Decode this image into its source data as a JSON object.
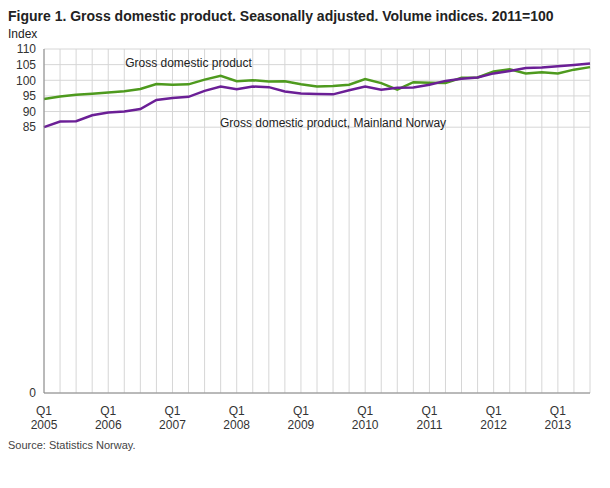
{
  "chart_data": {
    "type": "line",
    "title": "Figure 1. Gross domestic product. Seasonally adjusted. Volume indices. 2011=100",
    "y_label": "Index",
    "source": "Source: Statistics Norway.",
    "categories": [
      "Q1 2005",
      null,
      null,
      null,
      "Q1 2006",
      null,
      null,
      null,
      "Q1 2007",
      null,
      null,
      null,
      "Q1 2008",
      null,
      null,
      null,
      "Q1 2009",
      null,
      null,
      null,
      "Q1 2010",
      null,
      null,
      null,
      "Q1 2011",
      null,
      null,
      null,
      "Q1 2012",
      null,
      null,
      null,
      "Q1 2013",
      null,
      null
    ],
    "series": [
      {
        "name": "Gross domestic product",
        "color": "#4e9a1e",
        "values": [
          94.0,
          94.8,
          95.4,
          95.7,
          96.1,
          96.5,
          97.2,
          98.8,
          98.6,
          98.7,
          100.2,
          101.4,
          99.7,
          100.0,
          99.6,
          99.7,
          98.7,
          98.0,
          98.2,
          98.6,
          100.4,
          99.1,
          97.0,
          99.4,
          99.2,
          99.1,
          100.8,
          100.9,
          102.8,
          103.5,
          102.2,
          102.6,
          102.2,
          103.4,
          104.2
        ]
      },
      {
        "name": "Gross domestic product, Mainland Norway",
        "color": "#6b1f96",
        "values": [
          85.0,
          86.8,
          86.9,
          88.8,
          89.7,
          90.0,
          90.8,
          93.7,
          94.3,
          94.7,
          96.6,
          98.0,
          97.1,
          98.0,
          97.8,
          96.4,
          95.8,
          95.6,
          95.5,
          96.8,
          98.0,
          97.0,
          97.6,
          97.7,
          98.6,
          99.8,
          100.5,
          100.9,
          102.2,
          103.0,
          103.9,
          104.1,
          104.5,
          104.9,
          105.4
        ]
      }
    ],
    "ylim": [
      0,
      110
    ],
    "yticks": [
      0,
      85,
      90,
      95,
      100,
      105,
      110
    ],
    "grid": true
  }
}
